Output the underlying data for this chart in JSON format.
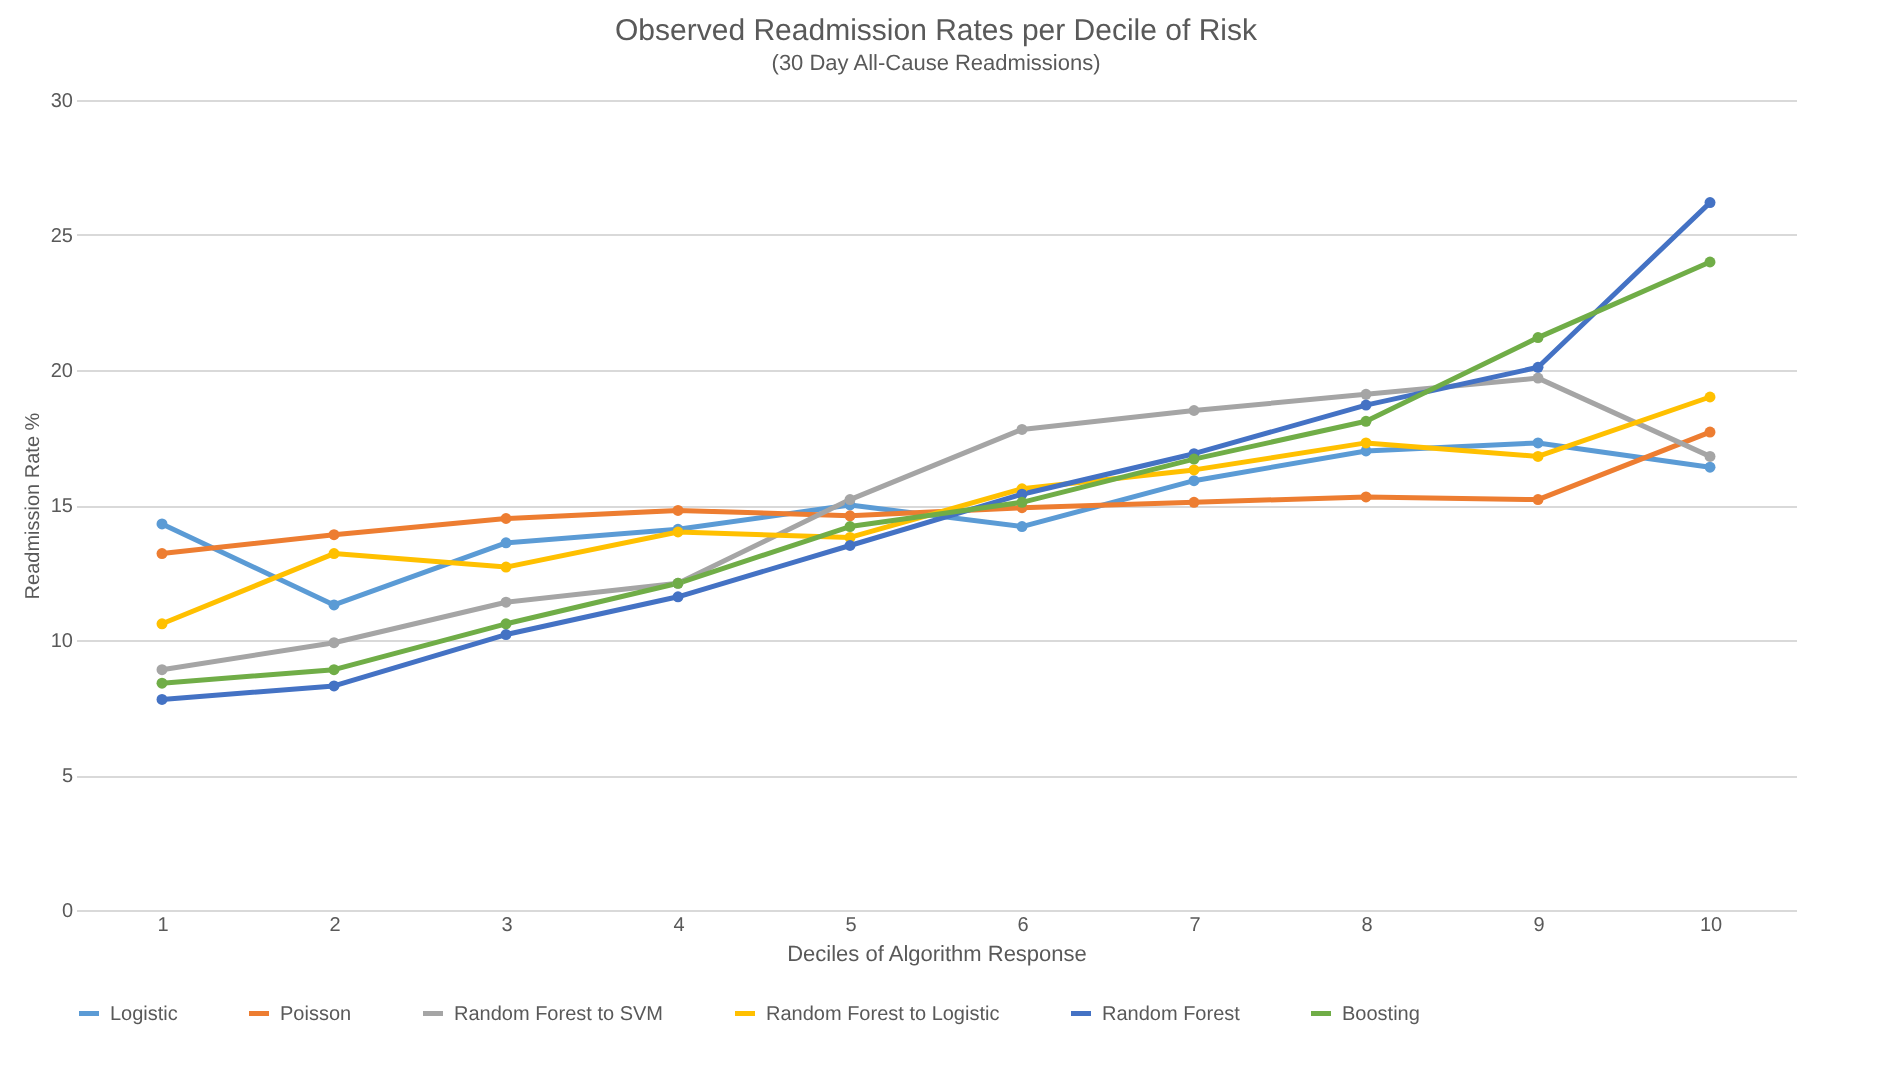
{
  "chart_data": {
    "type": "line",
    "title": "Observed Readmission Rates per Decile of Risk",
    "subtitle": "(30 Day All-Cause Readmissions)",
    "xlabel": "Deciles of Algorithm Response",
    "ylabel": "Readmission Rate %",
    "categories": [
      "1",
      "2",
      "3",
      "4",
      "5",
      "6",
      "7",
      "8",
      "9",
      "10"
    ],
    "series": [
      {
        "name": "Logistic",
        "color": "#5b9bd5",
        "values": [
          14.3,
          11.3,
          13.6,
          14.1,
          15.0,
          14.2,
          15.9,
          17.0,
          17.3,
          16.4
        ]
      },
      {
        "name": "Poisson",
        "color": "#ed7d31",
        "values": [
          13.2,
          13.9,
          14.5,
          14.8,
          14.6,
          14.9,
          15.1,
          15.3,
          15.2,
          17.7
        ]
      },
      {
        "name": "Random Forest to SVM",
        "color": "#a5a5a5",
        "values": [
          8.9,
          9.9,
          11.4,
          12.1,
          15.2,
          17.8,
          18.5,
          19.1,
          19.7,
          16.8
        ]
      },
      {
        "name": "Random Forest to Logistic",
        "color": "#ffc000",
        "values": [
          10.6,
          13.2,
          12.7,
          14.0,
          13.8,
          15.6,
          16.3,
          17.3,
          16.8,
          19.0
        ]
      },
      {
        "name": "Random Forest",
        "color": "#4472c4",
        "values": [
          7.8,
          8.3,
          10.2,
          11.6,
          13.5,
          15.4,
          16.9,
          18.7,
          20.1,
          26.2
        ]
      },
      {
        "name": "Boosting",
        "color": "#70ad47",
        "values": [
          8.4,
          8.9,
          10.6,
          12.1,
          14.2,
          15.1,
          16.7,
          18.1,
          21.2,
          24.0
        ]
      }
    ],
    "ylim": [
      0,
      30
    ],
    "yticks": [
      0,
      5,
      10,
      15,
      20,
      25,
      30
    ],
    "grid": "y",
    "legend": "bottom",
    "marker": "circle",
    "line_style": "solid"
  }
}
